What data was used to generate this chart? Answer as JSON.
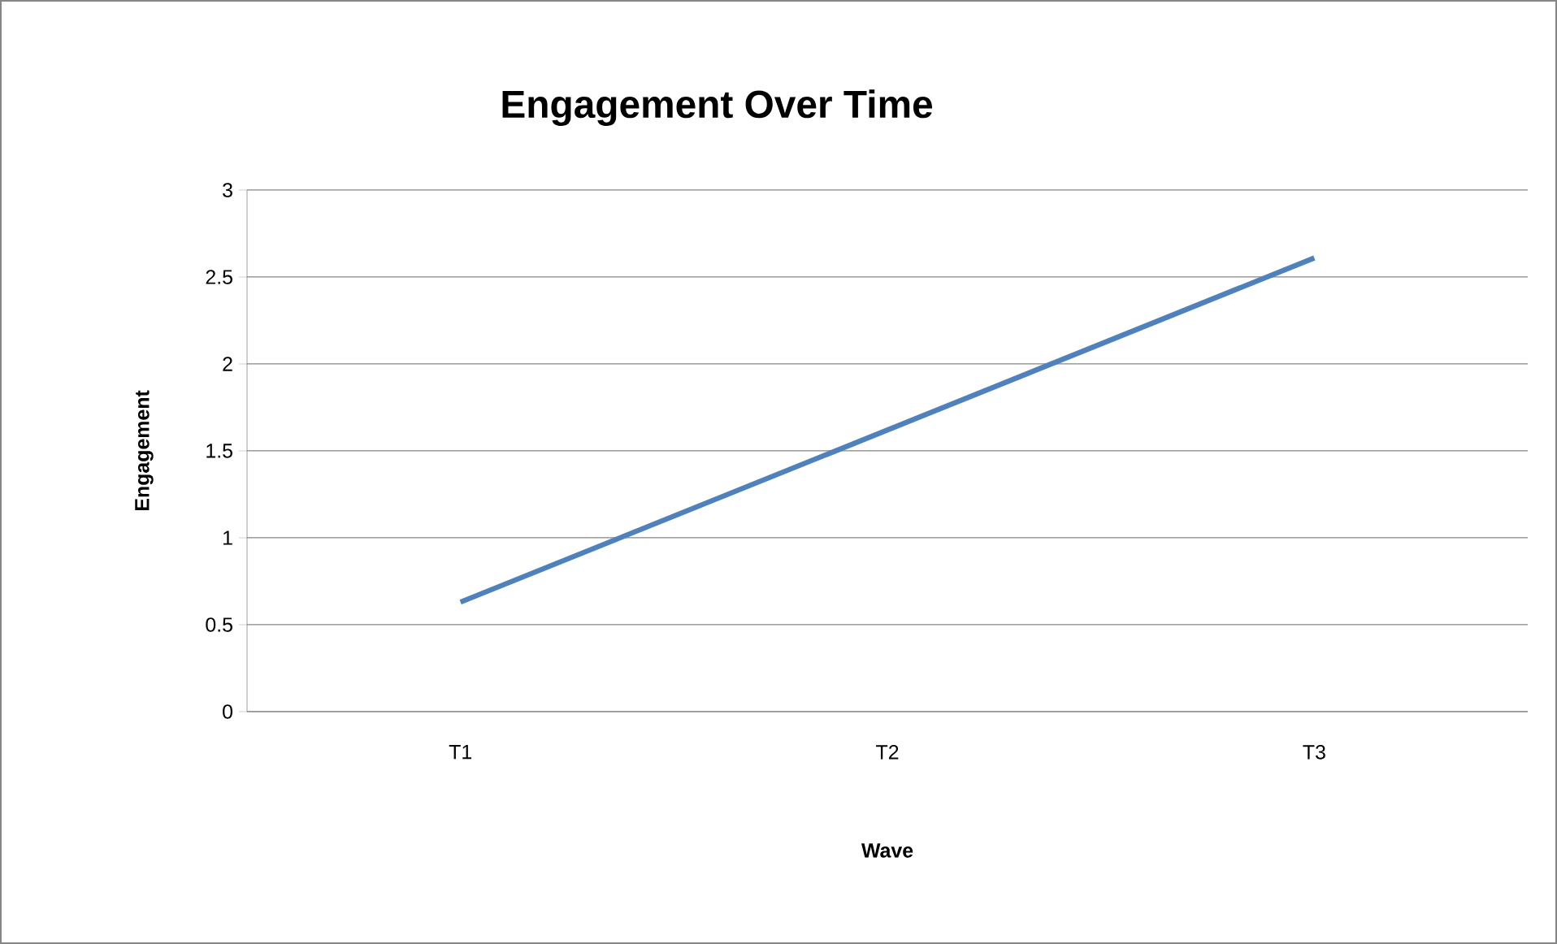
{
  "chart_data": {
    "type": "line",
    "title": "Engagement Over Time",
    "xlabel": "Wave",
    "ylabel": "Engagement",
    "categories": [
      "T1",
      "T2",
      "T3"
    ],
    "series": [
      {
        "color": "#4f81bd",
        "values": [
          0.63,
          1.62,
          2.61
        ]
      }
    ],
    "ylim": [
      0,
      3
    ],
    "yticks": [
      0,
      0.5,
      1,
      1.5,
      2,
      2.5,
      3
    ],
    "grid": "y",
    "marker": "none",
    "line_style": "solid"
  }
}
